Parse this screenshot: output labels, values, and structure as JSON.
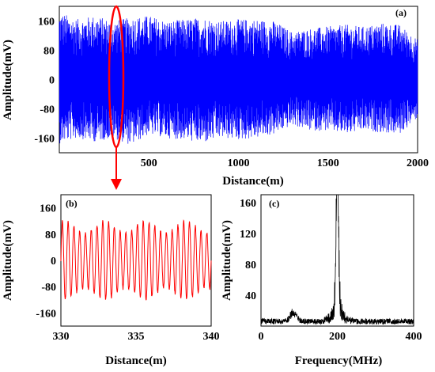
{
  "chart_data": [
    {
      "id": "a",
      "type": "line",
      "panel_label": "(a)",
      "xlabel": "Distance(m)",
      "ylabel": "Amplitude(mV)",
      "xlim": [
        0,
        2000
      ],
      "ylim": [
        -200,
        200
      ],
      "xticks": [
        500,
        1000,
        1500,
        2000
      ],
      "yticks": [
        160,
        80,
        0,
        -80,
        -160
      ],
      "series": [
        {
          "color": "#0000ff",
          "style": "dense oscillation",
          "x": [
            0,
            100,
            200,
            300,
            400,
            500,
            600,
            700,
            800,
            900,
            1000,
            1100,
            1200,
            1300,
            1400,
            1500,
            1600,
            1700,
            1800,
            1900,
            2000
          ],
          "envelope_upper": [
            185,
            165,
            175,
            160,
            170,
            175,
            160,
            165,
            170,
            160,
            165,
            165,
            160,
            130,
            140,
            145,
            150,
            145,
            155,
            150,
            110
          ],
          "envelope_lower": [
            -175,
            -160,
            -170,
            -160,
            -180,
            -150,
            -160,
            -165,
            -175,
            -160,
            -165,
            -160,
            -150,
            -125,
            -140,
            -140,
            -150,
            -140,
            -145,
            -150,
            -105
          ]
        }
      ],
      "annotation": "red ellipse highlighting region near 330–340 m with arrow to panel (b)"
    },
    {
      "id": "b",
      "type": "line",
      "panel_label": "(b)",
      "xlabel": "Distance(m)",
      "ylabel": "Amplitude(mV)",
      "xlim": [
        330,
        340
      ],
      "ylim": [
        -200,
        200
      ],
      "xticks": [
        330,
        335,
        340
      ],
      "yticks": [
        160,
        80,
        0,
        -80,
        -160
      ],
      "series": [
        {
          "color": "#ff0000",
          "style": "sinusoid",
          "cycles": 26,
          "amplitude_mV": 120
        }
      ]
    },
    {
      "id": "c",
      "type": "line",
      "panel_label": "(c)",
      "xlabel": "Frequency(MHz)",
      "ylabel": "Amplitude(mV)",
      "xlim": [
        0,
        400
      ],
      "ylim": [
        0,
        170
      ],
      "xticks": [
        0,
        200,
        400
      ],
      "yticks": [
        160,
        120,
        80,
        40
      ],
      "series": [
        {
          "color": "#000000",
          "style": "spectrum",
          "peak_frequency_MHz": 200,
          "peak_amplitude_mV": 170,
          "baseline_mV": 6,
          "secondary_bump": {
            "frequency_MHz": 85,
            "amplitude_mV": 15
          }
        }
      ]
    }
  ]
}
